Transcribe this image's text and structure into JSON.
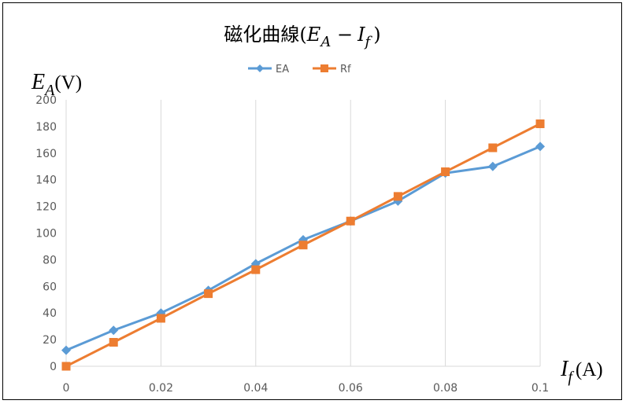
{
  "chart_data": {
    "type": "line",
    "title": {
      "prefix": "磁化曲線(",
      "main_var": "E",
      "main_sub": "A",
      "op": " −",
      "second_var": "I",
      "second_sub": "f",
      "suffix": ")"
    },
    "ylabel": {
      "var": "E",
      "sub": "A",
      "unit": "(V)"
    },
    "xlabel": {
      "var": "I",
      "sub": "f",
      "unit": "(A)"
    },
    "x": [
      0,
      0.01,
      0.02,
      0.03,
      0.04,
      0.05,
      0.06,
      0.07,
      0.08,
      0.09,
      0.1
    ],
    "x_tick_labels": [
      "0",
      "0.02",
      "0.04",
      "0.06",
      "0.08",
      "0.1"
    ],
    "y_tick_labels": [
      "0",
      "20",
      "40",
      "60",
      "80",
      "100",
      "120",
      "140",
      "160",
      "180",
      "200"
    ],
    "xlim": [
      0,
      0.1
    ],
    "ylim": [
      0,
      200
    ],
    "grid": "vertical",
    "legend_position": "top",
    "series": [
      {
        "name": "EA",
        "color": "#5B9BD5",
        "marker": "diamond",
        "values": [
          12,
          27,
          40,
          57,
          77,
          95,
          109,
          124,
          145,
          150,
          165
        ]
      },
      {
        "name": "Rf",
        "color": "#ED7D31",
        "marker": "square",
        "values": [
          0,
          18,
          36,
          54.5,
          72.5,
          91,
          109,
          127.5,
          146,
          164,
          182
        ]
      }
    ]
  }
}
